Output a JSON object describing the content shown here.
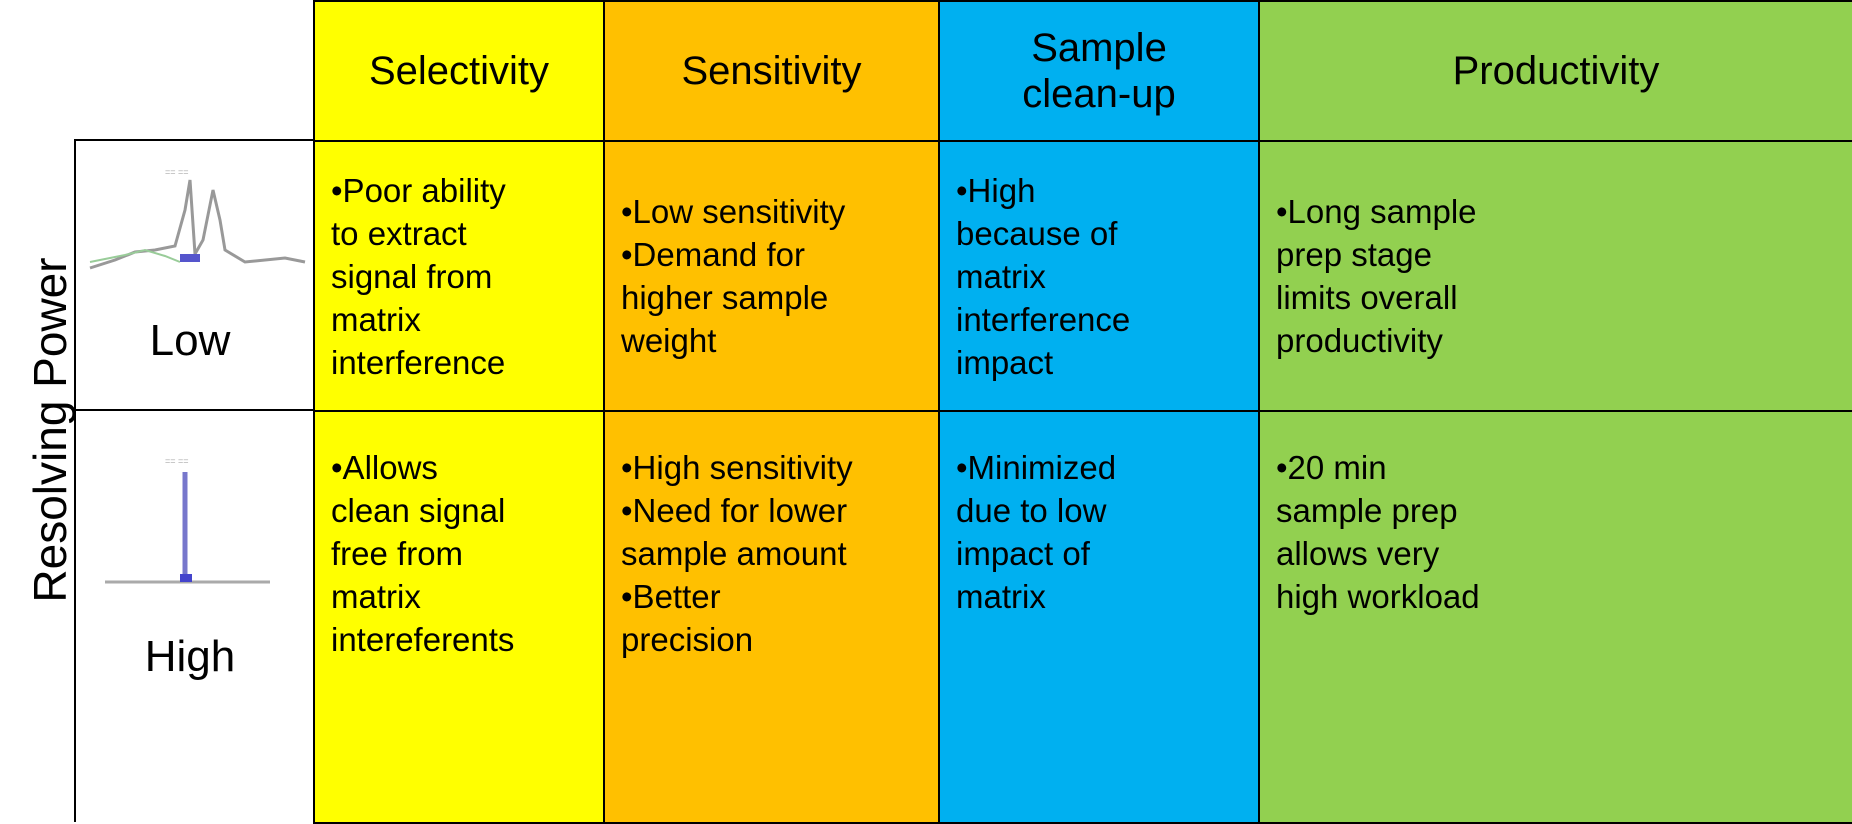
{
  "table": {
    "side_label": "Resolving Power",
    "columns": [
      [
        "Selectivity"
      ],
      [
        "Sensitivity"
      ],
      [
        "Sample",
        "clean-up"
      ],
      [
        "Productivity"
      ]
    ],
    "rows": [
      {
        "label": "Low",
        "cells": [
          [
            "•Poor ability",
            "to extract",
            "signal from",
            "matrix",
            "interference"
          ],
          [
            "•Low sensitivity",
            "•Demand for",
            "higher sample",
            "weight"
          ],
          [
            "•High",
            "because of",
            "matrix",
            "interference",
            "impact"
          ],
          [
            "•Long sample",
            "prep stage",
            "limits overall",
            "productivity"
          ]
        ]
      },
      {
        "label": "High",
        "cells": [
          [
            "•Allows",
            "clean signal",
            "free from",
            "matrix",
            "intereferents"
          ],
          [
            "•High sensitivity",
            "•Need for lower",
            "sample amount",
            "•Better",
            "precision"
          ],
          [
            "•Minimized",
            "due to low",
            "impact of",
            "matrix"
          ],
          [
            "•20 min",
            "sample prep",
            "allows very",
            "high workload"
          ]
        ]
      }
    ]
  }
}
